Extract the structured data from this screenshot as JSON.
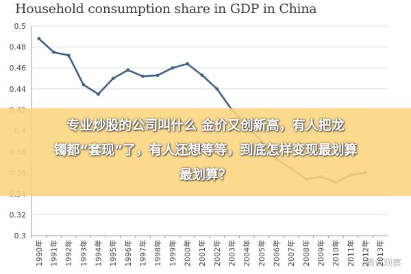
{
  "chart_data": {
    "type": "line",
    "title": "Household consumption share in GDP in China",
    "xlabel": "",
    "ylabel": "",
    "ylim": [
      0.3,
      0.5
    ],
    "yticks": [
      "0.5",
      "0.48",
      "0.46",
      "0.44",
      "0.42",
      "0.4",
      "0.38",
      "0.36",
      "0.34",
      "0.32",
      "0.3"
    ],
    "x": [
      "1990年",
      "1991年",
      "1992年",
      "1993年",
      "1994年",
      "1995年",
      "1996年",
      "1997年",
      "1998年",
      "1999年",
      "2000年",
      "2001年",
      "2002年",
      "2003年",
      "2004年",
      "2005年",
      "2006年",
      "2007年",
      "2008年",
      "2009年",
      "2010年",
      "2011年",
      "2012年",
      "2013年"
    ],
    "series": [
      {
        "color": "#3e5f8a",
        "values": [
          0.488,
          0.475,
          0.472,
          0.444,
          0.435,
          0.45,
          0.458,
          0.452,
          0.453,
          0.46,
          0.464,
          0.453,
          0.44,
          0.42,
          0.405,
          0.39,
          0.373,
          0.364,
          0.354,
          0.356,
          0.351,
          0.358,
          0.36,
          null
        ]
      }
    ],
    "grid": true,
    "legend": "none"
  },
  "overlay": {
    "line1": "专业炒股的公司叫什么 金价又创新高，有人把龙",
    "line2": "镯都“套现”了，有人还想等等，到底怎样变现最划算",
    "line3": "最划算？",
    "color": "#fad57d"
  },
  "watermark": "腾讯观察"
}
